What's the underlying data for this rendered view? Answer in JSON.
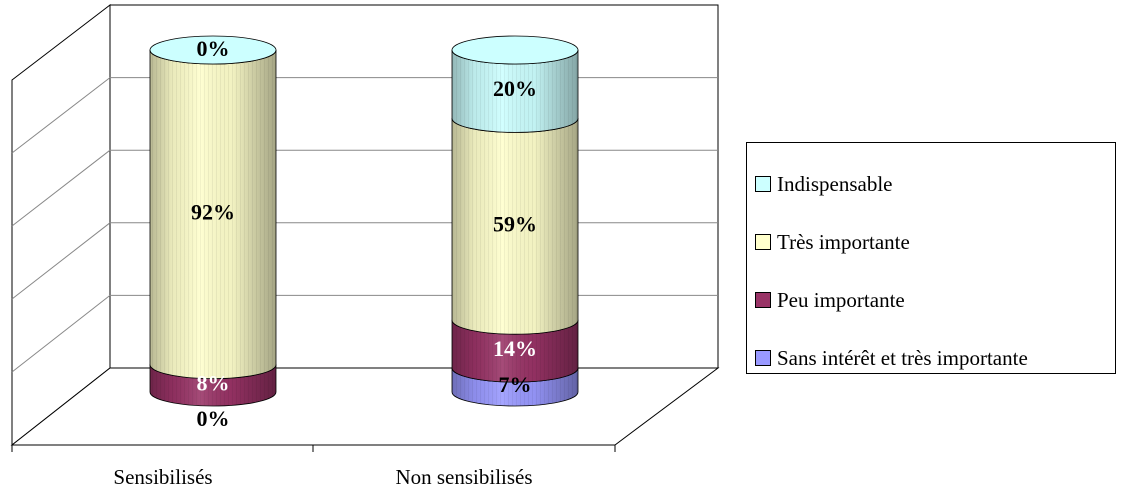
{
  "chart_data": {
    "type": "bar",
    "stacked": true,
    "three_d": true,
    "shape": "cylinder",
    "title": "",
    "xlabel": "",
    "ylabel": "",
    "ylim": [
      0,
      100
    ],
    "grid": true,
    "legend_position": "right",
    "categories": [
      "Sensibilisés",
      "Non sensibilisés"
    ],
    "series": [
      {
        "name": "Sans intérêt et très importante",
        "color": "#9999ff",
        "values": [
          0,
          7
        ],
        "labels": [
          "0%",
          "7%"
        ]
      },
      {
        "name": "Peu importante",
        "color": "#993366",
        "values": [
          8,
          14
        ],
        "labels": [
          "8%",
          "14%"
        ]
      },
      {
        "name": "Très importante",
        "color": "#ffffcc",
        "values": [
          92,
          59
        ],
        "labels": [
          "92%",
          "59%"
        ]
      },
      {
        "name": "Indispensable",
        "color": "#ccffff",
        "values": [
          0,
          20
        ],
        "labels": [
          "0%",
          "20%"
        ]
      }
    ],
    "legend_order": [
      "Indispensable",
      "Très importante",
      "Peu importante",
      "Sans intérêt et très importante"
    ]
  }
}
